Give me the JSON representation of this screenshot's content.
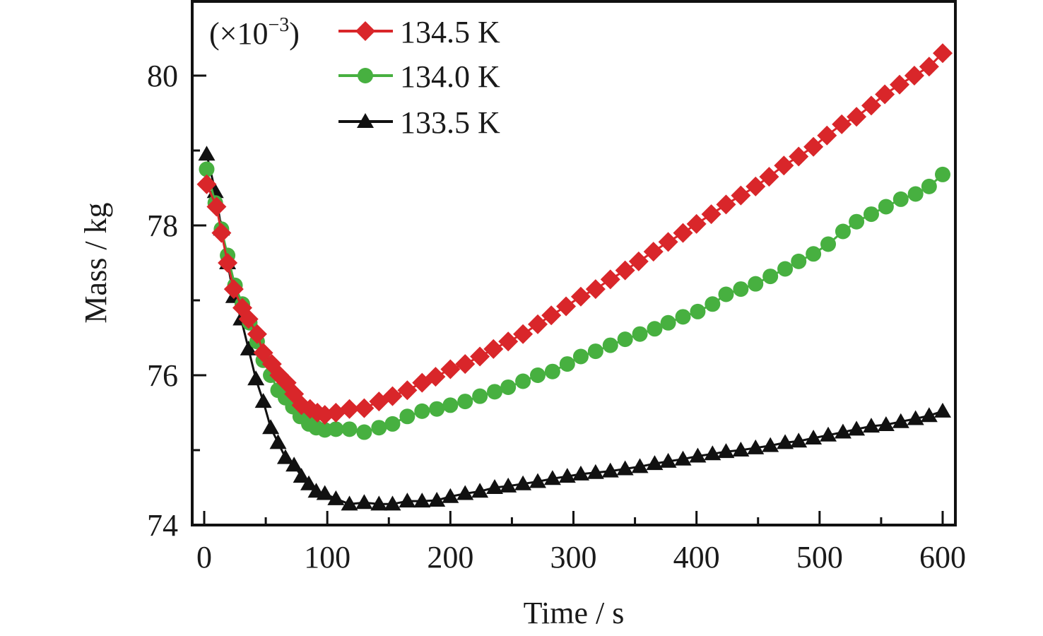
{
  "chart_data": {
    "type": "line",
    "title": "",
    "xlabel": "Time / s",
    "ylabel": "Mass / kg",
    "y_multiplier_label": "(×10",
    "y_multiplier_exp": "−3",
    "y_multiplier_close": ")",
    "xlim": [
      -8,
      612
    ],
    "ylim": [
      74,
      81
    ],
    "xticks": [
      0,
      100,
      200,
      300,
      400,
      500,
      600
    ],
    "xtick_labels": [
      "0",
      "100",
      "200",
      "300",
      "400",
      "500",
      "600"
    ],
    "x_minor_ticks": [
      50,
      150,
      250,
      350,
      450,
      550
    ],
    "yticks": [
      74,
      76,
      78,
      80
    ],
    "ytick_labels": [
      "74",
      "76",
      "78",
      "80"
    ],
    "y_minor_ticks": [
      75,
      77,
      79
    ],
    "grid": false,
    "legend_position": "top-left",
    "series": [
      {
        "name": "134.5 K",
        "label": "134.5 K",
        "color": "#d9262a",
        "marker": "diamond",
        "x": [
          2,
          10,
          14,
          19,
          24,
          31,
          36,
          43,
          48,
          55,
          61,
          67,
          73,
          79,
          86,
          92,
          98,
          107,
          118,
          130,
          142,
          153,
          165,
          177,
          188,
          200,
          212,
          224,
          235,
          247,
          259,
          271,
          282,
          294,
          306,
          318,
          330,
          342,
          353,
          365,
          377,
          389,
          400,
          412,
          424,
          436,
          448,
          459,
          471,
          483,
          495,
          506,
          518,
          530,
          542,
          553,
          565,
          577,
          589,
          600
        ],
        "y": [
          78.55,
          78.25,
          77.9,
          77.5,
          77.15,
          76.9,
          76.75,
          76.55,
          76.3,
          76.15,
          76.0,
          75.9,
          75.75,
          75.6,
          75.55,
          75.5,
          75.47,
          75.5,
          75.55,
          75.56,
          75.65,
          75.72,
          75.8,
          75.9,
          75.98,
          76.08,
          76.15,
          76.25,
          76.35,
          76.45,
          76.55,
          76.68,
          76.8,
          76.92,
          77.05,
          77.15,
          77.28,
          77.4,
          77.52,
          77.65,
          77.78,
          77.9,
          78.02,
          78.15,
          78.28,
          78.4,
          78.52,
          78.65,
          78.8,
          78.92,
          79.05,
          79.2,
          79.35,
          79.45,
          79.6,
          79.75,
          79.88,
          80.0,
          80.12,
          80.3
        ]
      },
      {
        "name": "134.0 K",
        "label": "134.0 K",
        "color": "#47b040",
        "marker": "circle",
        "x": [
          2,
          9,
          14,
          19,
          25,
          31,
          37,
          43,
          48,
          54,
          60,
          66,
          72,
          78,
          85,
          91,
          98,
          107,
          118,
          130,
          142,
          153,
          165,
          177,
          189,
          200,
          212,
          224,
          236,
          247,
          259,
          271,
          283,
          295,
          306,
          318,
          330,
          342,
          354,
          366,
          377,
          389,
          401,
          413,
          424,
          436,
          448,
          460,
          472,
          483,
          495,
          507,
          519,
          530,
          542,
          554,
          566,
          578,
          589,
          600
        ],
        "y": [
          78.75,
          78.3,
          77.95,
          77.6,
          77.2,
          76.95,
          76.7,
          76.45,
          76.2,
          76.0,
          75.8,
          75.7,
          75.58,
          75.45,
          75.35,
          75.3,
          75.27,
          75.28,
          75.28,
          75.24,
          75.3,
          75.35,
          75.45,
          75.52,
          75.55,
          75.6,
          75.65,
          75.72,
          75.78,
          75.84,
          75.92,
          76.0,
          76.05,
          76.15,
          76.25,
          76.32,
          76.4,
          76.48,
          76.55,
          76.62,
          76.7,
          76.78,
          76.85,
          76.95,
          77.08,
          77.15,
          77.22,
          77.32,
          77.42,
          77.52,
          77.62,
          77.75,
          77.92,
          78.05,
          78.15,
          78.25,
          78.35,
          78.42,
          78.52,
          78.68
        ]
      },
      {
        "name": "133.5 K",
        "label": "133.5 K",
        "color": "#111111",
        "marker": "triangle",
        "x": [
          2,
          9,
          14,
          19,
          24,
          30,
          36,
          42,
          48,
          54,
          60,
          66,
          73,
          79,
          85,
          91,
          98,
          107,
          118,
          130,
          142,
          153,
          165,
          177,
          189,
          200,
          212,
          224,
          236,
          247,
          259,
          271,
          283,
          295,
          306,
          318,
          330,
          342,
          354,
          366,
          377,
          389,
          401,
          413,
          424,
          436,
          448,
          460,
          472,
          483,
          495,
          507,
          519,
          530,
          542,
          554,
          566,
          578,
          589,
          600
        ],
        "y": [
          78.95,
          78.45,
          77.95,
          77.5,
          77.05,
          76.75,
          76.35,
          75.95,
          75.65,
          75.3,
          75.1,
          74.9,
          74.8,
          74.65,
          74.55,
          74.45,
          74.42,
          74.35,
          74.28,
          74.3,
          74.28,
          74.28,
          74.32,
          74.32,
          74.33,
          74.38,
          74.42,
          74.45,
          74.5,
          74.52,
          74.55,
          74.58,
          74.62,
          74.65,
          74.68,
          74.7,
          74.72,
          74.75,
          74.78,
          74.82,
          74.85,
          74.88,
          74.92,
          74.95,
          74.98,
          75.0,
          75.03,
          75.06,
          75.1,
          75.12,
          75.16,
          75.2,
          75.24,
          75.28,
          75.32,
          75.34,
          75.38,
          75.42,
          75.46,
          75.52
        ]
      }
    ]
  }
}
